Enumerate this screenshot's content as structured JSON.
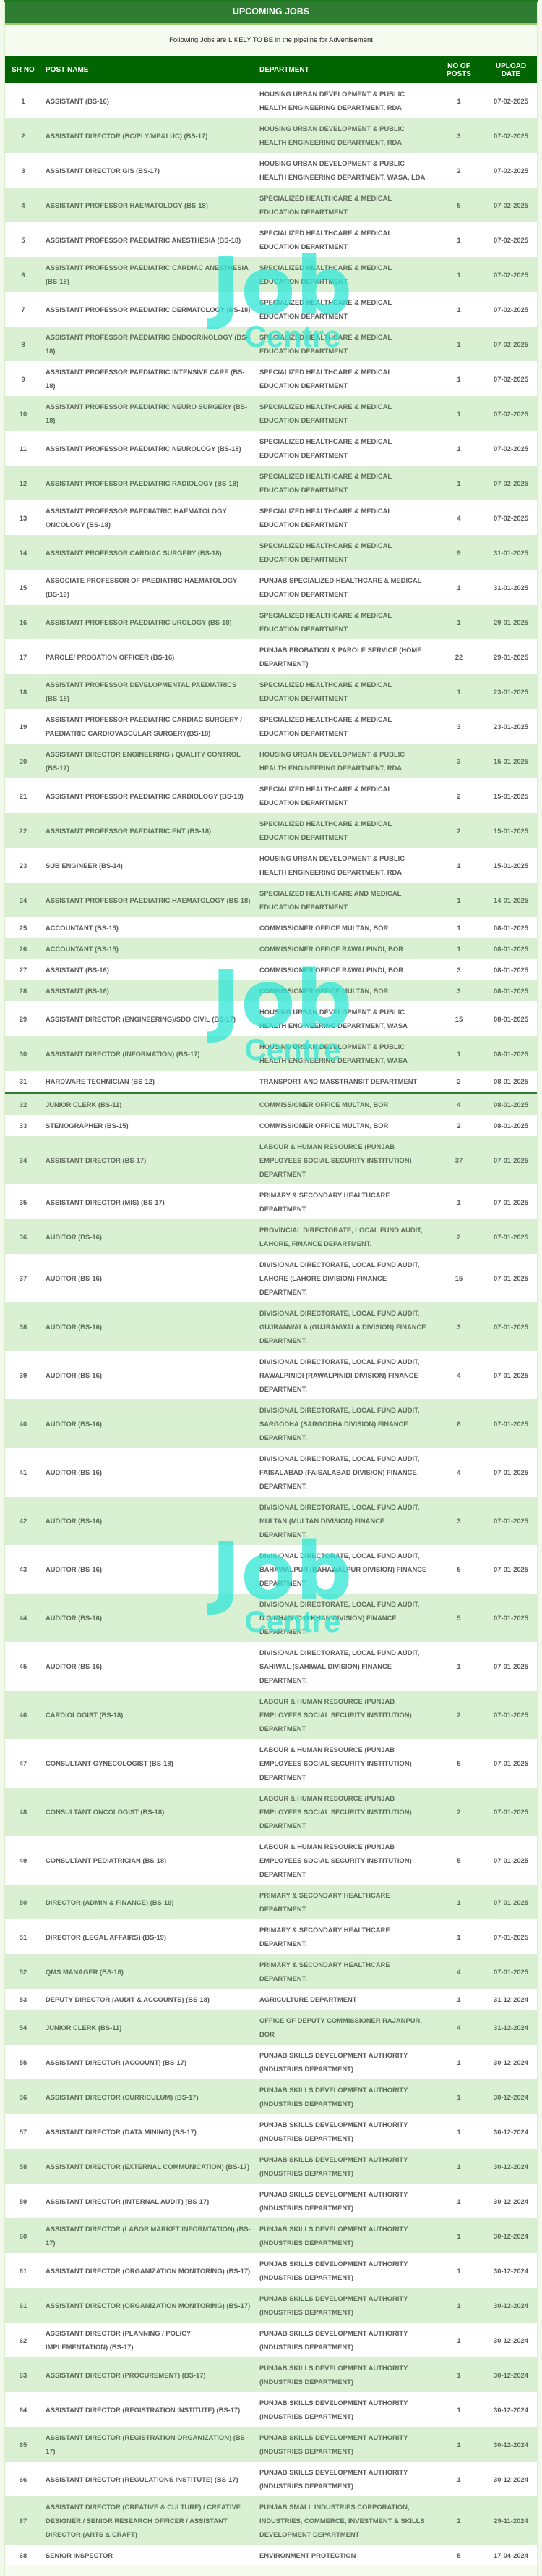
{
  "title": "UPCOMING JOBS",
  "subtitle": {
    "before": "Following Jobs are ",
    "emphasis": "LIKELY TO BE",
    "after": " in the pipeline for Advertisement"
  },
  "columns": [
    "SR NO",
    "POST NAME",
    "DEPARTMENT",
    "NO OF POSTS",
    "UPLOAD DATE"
  ],
  "watermark": {
    "logo": "Job",
    "sub": "Centre"
  },
  "colors": {
    "header_green": "#006400",
    "title_green": "#2e7d32",
    "row_alt": "#d9f0d3",
    "watermark": "#2ee6d6"
  },
  "rows": [
    [
      "1",
      "ASSISTANT (BS-16)",
      "HOUSING URBAN DEVELOPMENT & PUBLIC HEALTH ENGINEERING DEPARTMENT, RDA",
      "1",
      "07-02-2025"
    ],
    [
      "2",
      "ASSISTANT DIRECTOR (BC/PLY/MP&LUC) (BS-17)",
      "HOUSING URBAN DEVELOPMENT & PUBLIC HEALTH ENGINEERING DEPARTMENT, RDA",
      "3",
      "07-02-2025"
    ],
    [
      "3",
      "ASSISTANT DIRECTOR GIS (BS-17)",
      "HOUSING URBAN DEVELOPMENT & PUBLIC HEALTH ENGINEERING DEPARTMENT, WASA, LDA",
      "2",
      "07-02-2025"
    ],
    [
      "4",
      "ASSISTANT PROFESSOR HAEMATOLOGY (BS-18)",
      "SPECIALIZED HEALTHCARE & MEDICAL EDUCATION DEPARTMENT",
      "5",
      "07-02-2025"
    ],
    [
      "5",
      "ASSISTANT PROFESSOR PAEDIATRIC ANESTHESIA (BS-18)",
      "SPECIALIZED HEALTHCARE & MEDICAL EDUCATION DEPARTMENT",
      "1",
      "07-02-2025"
    ],
    [
      "6",
      "ASSISTANT PROFESSOR PAEDIATRIC CARDIAC ANESTHESIA (BS-18)",
      "SPECIALIZED HEALTHCARE & MEDICAL EDUCATION DEPARTMENT",
      "1",
      "07-02-2025"
    ],
    [
      "7",
      "ASSISTANT PROFESSOR PAEDIATRIC DERMATOLOGY (BS-18)",
      "SPECIALIZED HEALTHCARE & MEDICAL EDUCATION DEPARTMENT",
      "1",
      "07-02-2025"
    ],
    [
      "8",
      "ASSISTANT PROFESSOR PAEDIATRIC ENDOCRINOLOGY (BS-18)",
      "SPECIALIZED HEALTHCARE & MEDICAL EDUCATION DEPARTMENT",
      "1",
      "07-02-2025"
    ],
    [
      "9",
      "ASSISTANT PROFESSOR PAEDIATRIC INTENSIVE CARE (BS-18)",
      "SPECIALIZED HEALTHCARE & MEDICAL EDUCATION DEPARTMENT",
      "1",
      "07-02-2025"
    ],
    [
      "10",
      "ASSISTANT PROFESSOR PAEDIATRIC NEURO SURGERY (BS-18)",
      "SPECIALIZED HEALTHCARE & MEDICAL EDUCATION DEPARTMENT",
      "1",
      "07-02-2025"
    ],
    [
      "11",
      "ASSISTANT PROFESSOR PAEDIATRIC NEUROLOGY (BS-18)",
      "SPECIALIZED HEALTHCARE & MEDICAL EDUCATION DEPARTMENT",
      "1",
      "07-02-2025"
    ],
    [
      "12",
      "ASSISTANT PROFESSOR PAEDIATRIC RADIOLOGY (BS-18)",
      "SPECIALIZED HEALTHCARE & MEDICAL EDUCATION DEPARTMENT",
      "1",
      "07-02-2025"
    ],
    [
      "13",
      "ASSISTANT PROFESSOR PAEDIIATRIC HAEMATOLOGY ONCOLOGY (BS-18)",
      "SPECIALIZED HEALTHCARE & MEDICAL EDUCATION DEPARTMENT",
      "4",
      "07-02-2025"
    ],
    [
      "14",
      "ASSISTANT PROFESSOR CARDIAC SURGERY (BS-18)",
      "SPECIALIZED HEALTHCARE & MEDICAL EDUCATION DEPARTMENT",
      "9",
      "31-01-2025"
    ],
    [
      "15",
      "ASSOCIATE PROFESSOR OF PAEDIATRIC HAEMATOLOGY (BS-19)",
      "PUNJAB SPECIALIZED HEALTHCARE & MEDICAL EDUCATION DEPARTMENT",
      "1",
      "31-01-2025"
    ],
    [
      "16",
      "ASSISTANT PROFESSOR PAEDIATRIC UROLOGY (BS-18)",
      "SPECIALIZED HEALTHCARE & MEDICAL EDUCATION DEPARTMENT",
      "1",
      "29-01-2025"
    ],
    [
      "17",
      "PAROLE/ PROBATION OFFICER (BS-16)",
      "PUNJAB PROBATION & PAROLE SERVICE (HOME DEPARTMENT)",
      "22",
      "29-01-2025"
    ],
    [
      "18",
      "ASSISTANT PROFESSOR DEVELOPMENTAL PAEDIATRICS (BS-18)",
      "SPECIALIZED HEALTHCARE & MEDICAL EDUCATION DEPARTMENT",
      "1",
      "23-01-2025"
    ],
    [
      "19",
      "ASSISTANT PROFESSOR PAEDIATRIC CARDIAC SURGERY / PAEDIATRIC CARDIOVASCULAR SURGERY(BS-18)",
      "SPECIALIZED HEALTHCARE & MEDICAL EDUCATION DEPARTMENT",
      "3",
      "23-01-2025"
    ],
    [
      "20",
      "ASSISTANT DIRECTOR ENGINEERING / QUALITY CONTROL (BS-17)",
      "HOUSING URBAN DEVELOPMENT & PUBLIC HEALTH ENGINEERING DEPARTMENT, RDA",
      "3",
      "15-01-2025"
    ],
    [
      "21",
      "ASSISTANT PROFESSOR PAEDIATRIC CARDIOLOGY (BS-18)",
      "SPECIALIZED HEALTHCARE & MEDICAL EDUCATION DEPARTMENT",
      "2",
      "15-01-2025"
    ],
    [
      "22",
      "ASSISTANT PROFESSOR PAEDIATRIC ENT (BS-18)",
      "SPECIALIZED HEALTHCARE & MEDICAL EDUCATION DEPARTMENT",
      "2",
      "15-01-2025"
    ],
    [
      "23",
      "SUB ENGINEER (BS-14)",
      "HOUSING URBAN DEVELOPMENT & PUBLIC HEALTH ENGINEERING DEPARTMENT, RDA",
      "1",
      "15-01-2025"
    ],
    [
      "24",
      "ASSISTANT PROFESSOR PAEDIATRIC HAEMATOLOGY (BS-18)",
      "SPECIALIZED HEALTHCARE AND MEDICAL EDUCATION DEPARTMENT",
      "1",
      "14-01-2025"
    ],
    [
      "25",
      "ACCOUNTANT (BS-15)",
      "COMMISSIONER OFFICE MULTAN, BOR",
      "1",
      "08-01-2025"
    ],
    [
      "26",
      "ACCOUNTANT (BS-15)",
      "COMMISSIONER OFFICE RAWALPINDI, BOR",
      "1",
      "08-01-2025"
    ],
    [
      "27",
      "ASSISTANT (BS-16)",
      "COMMISSIONER OFFICE RAWALPINDI, BOR",
      "3",
      "08-01-2025"
    ],
    [
      "28",
      "ASSISTANT (BS-16)",
      "COMMISSIONER OFFICE MULTAN, BOR",
      "3",
      "08-01-2025"
    ],
    [
      "29",
      "ASSISTANT DIRECTOR (ENGINEERING)/SDO CIVIL (BS-17)",
      "HOUSING URBAN DEVELOPMENT & PUBLIC HEALTH ENGINEERING DEPARTMENT, WASA",
      "15",
      "08-01-2025"
    ],
    [
      "30",
      "ASSISTANT DIRECTOR (INFORMATION) (BS-17)",
      "HOUSING URBAN DEVELOPMENT & PUBLIC HEALTH ENGINEERING DEPARTMENT, WASA",
      "1",
      "08-01-2025"
    ],
    [
      "31",
      "HARDWARE TECHNICIAN (BS-12)",
      "TRANSPORT AND MASSTRANSIT DEPARTMENT",
      "2",
      "08-01-2025"
    ],
    [
      "32",
      "JUNIOR CLERK (BS-11)",
      "COMMISSIONER OFFICE MULTAN, BOR",
      "4",
      "08-01-2025"
    ],
    [
      "33",
      "STENOGRAPHER (BS-15)",
      "COMMISSIONER OFFICE MULTAN, BOR",
      "2",
      "08-01-2025"
    ],
    [
      "34",
      "ASSISTANT DIRECTOR (BS-17)",
      "LABOUR & HUMAN RESOURCE (PUNJAB EMPLOYEES SOCIAL SECURITY INSTITUTION) DEPARTMENT",
      "37",
      "07-01-2025"
    ],
    [
      "35",
      "ASSISTANT DIRECTOR (MIS) (BS-17)",
      "PRIMARY & SECONDARY HEALTHCARE DEPARTMENT.",
      "1",
      "07-01-2025"
    ],
    [
      "36",
      "AUDITOR (BS-16)",
      "PROVINCIAL DIRECTORATE, LOCAL FUND AUDIT, LAHORE, FINANCE DEPARTMENT.",
      "2",
      "07-01-2025"
    ],
    [
      "37",
      "AUDITOR (BS-16)",
      "DIVISIONAL DIRECTORATE, LOCAL FUND AUDIT, LAHORE (LAHORE DIVISION) FINANCE DEPARTMENT.",
      "15",
      "07-01-2025"
    ],
    [
      "38",
      "AUDITOR (BS-16)",
      "DIVISIONAL DIRECTORATE, LOCAL FUND AUDIT, GUJRANWALA (GUJRANWALA DIVISION) FINANCE DEPARTMENT.",
      "3",
      "07-01-2025"
    ],
    [
      "39",
      "AUDITOR (BS-16)",
      "DIVISIONAL DIRECTORATE, LOCAL FUND AUDIT, RAWALPINIDI (RAWALPINIDI DIVISION) FINANCE DEPARTMENT.",
      "4",
      "07-01-2025"
    ],
    [
      "40",
      "AUDITOR (BS-16)",
      "DIVISIONAL DIRECTORATE, LOCAL FUND AUDIT, SARGODHA (SARGODHA DIVISION) FINANCE DEPARTMENT.",
      "8",
      "07-01-2025"
    ],
    [
      "41",
      "AUDITOR (BS-16)",
      "DIVISIONAL DIRECTORATE, LOCAL FUND AUDIT, FAISALABAD (FAISALABAD DIVISION) FINANCE DEPARTMENT.",
      "4",
      "07-01-2025"
    ],
    [
      "42",
      "AUDITOR (BS-16)",
      "DIVISIONAL DIRECTORATE, LOCAL FUND AUDIT, MULTAN (MULTAN DIVISION) FINANCE DEPARTMENT.",
      "3",
      "07-01-2025"
    ],
    [
      "43",
      "AUDITOR (BS-16)",
      "DIVISIONAL DIRECTORATE, LOCAL FUND AUDIT, BAHAWALPUR (BAHAWALPUR DIVISION) FINANCE DEPARTMENT.",
      "5",
      "07-01-2025"
    ],
    [
      "44",
      "AUDITOR (BS-16)",
      "DIVISIONAL DIRECTORATE, LOCAL FUND AUDIT, D.G KHAN (D.G KHAN DIVISION) FINANCE DEPARTMENT.",
      "5",
      "07-01-2025"
    ],
    [
      "45",
      "AUDITOR (BS-16)",
      "DIVISIONAL DIRECTORATE, LOCAL FUND AUDIT, SAHIWAL (SAHIWAL DIVISION) FINANCE DEPARTMENT.",
      "1",
      "07-01-2025"
    ],
    [
      "46",
      "CARDIOLOGIST (BS-18)",
      "LABOUR & HUMAN RESOURCE (PUNJAB EMPLOYEES SOCIAL SECURITY INSTITUTION) DEPARTMENT",
      "2",
      "07-01-2025"
    ],
    [
      "47",
      "CONSULTANT GYNECOLOGIST (BS-18)",
      "LABOUR & HUMAN RESOURCE (PUNJAB EMPLOYEES SOCIAL SECURITY INSTITUTION) DEPARTMENT",
      "5",
      "07-01-2025"
    ],
    [
      "48",
      "CONSULTANT ONCOLOGIST (BS-18)",
      "LABOUR & HUMAN RESOURCE (PUNJAB EMPLOYEES SOCIAL SECURITY INSTITUTION) DEPARTMENT",
      "2",
      "07-01-2025"
    ],
    [
      "49",
      "CONSULTANT PEDIATRICIAN (BS-18)",
      "LABOUR & HUMAN RESOURCE (PUNJAB EMPLOYEES SOCIAL SECURITY INSTITUTION) DEPARTMENT",
      "5",
      "07-01-2025"
    ],
    [
      "50",
      "DIRECTOR (ADMIN & FINANCE) (BS-19)",
      "PRIMARY & SECONDARY HEALTHCARE DEPARTMENT.",
      "1",
      "07-01-2025"
    ],
    [
      "51",
      "DIRECTOR (LEGAL AFFAIRS) (BS-19)",
      "PRIMARY & SECONDARY HEALTHCARE DEPARTMENT.",
      "1",
      "07-01-2025"
    ],
    [
      "52",
      "QMS MANAGER (BS-18)",
      "PRIMARY & SECONDARY HEALTHCARE DEPARTMENT.",
      "4",
      "07-01-2025"
    ],
    [
      "53",
      "DEPUTY DIRECTOR (AUDIT & ACCOUNTS) (BS-18)",
      "AGRICULTURE DEPARTMENT",
      "1",
      "31-12-2024"
    ],
    [
      "54",
      "JUNIOR CLERK (BS-11)",
      "OFFICE OF DEPUTY COMMISSIONER RAJANPUR, BOR",
      "4",
      "31-12-2024"
    ],
    [
      "55",
      "ASSISTANT DIRECTOR (ACCOUNT) (BS-17)",
      "PUNJAB SKILLS DEVELOPMENT AUTHORITY (INDUSTRIES DEPARTMENT)",
      "1",
      "30-12-2024"
    ],
    [
      "56",
      "ASSISTANT DIRECTOR (CURRICULUM) (BS-17)",
      "PUNJAB SKILLS DEVELOPMENT AUTHORITY (INDUSTRIES DEPARTMENT)",
      "1",
      "30-12-2024"
    ],
    [
      "57",
      "ASSISTANT DIRECTOR (DATA MINING) (BS-17)",
      "PUNJAB SKILLS DEVELOPMENT AUTHORITY (INDUSTRIES DEPARTMENT)",
      "1",
      "30-12-2024"
    ],
    [
      "58",
      "ASSISTANT DIRECTOR (EXTERNAL COMMUNICATION) (BS-17)",
      "PUNJAB SKILLS DEVELOPMENT AUTHORITY (INDUSTRIES DEPARTMENT)",
      "1",
      "30-12-2024"
    ],
    [
      "59",
      "ASSISTANT DIRECTOR (INTERNAL AUDIT) (BS-17)",
      "PUNJAB SKILLS DEVELOPMENT AUTHORITY (INDUSTRIES DEPARTMENT)",
      "1",
      "30-12-2024"
    ],
    [
      "60",
      "ASSISTANT DIRECTOR (LABOR MARKET INFORMTATION) (BS-17)",
      "PUNJAB SKILLS DEVELOPMENT AUTHORITY (INDUSTRIES DEPARTMENT)",
      "1",
      "30-12-2024"
    ],
    [
      "61",
      "ASSISTANT DIRECTOR (ORGANIZATION MONITORING) (BS-17)",
      "PUNJAB SKILLS DEVELOPMENT AUTHORITY (INDUSTRIES DEPARTMENT)",
      "1",
      "30-12-2024"
    ],
    [
      "61",
      "ASSISTANT DIRECTOR (ORGANIZATION MONITORING) (BS-17)",
      "PUNJAB SKILLS DEVELOPMENT AUTHORITY (INDUSTRIES DEPARTMENT)",
      "1",
      "30-12-2024"
    ],
    [
      "62",
      "ASSISTANT DIRECTOR (PLANNING / POLICY IMPLEMENTATION) (BS-17)",
      "PUNJAB SKILLS DEVELOPMENT AUTHORITY (INDUSTRIES DEPARTMENT)",
      "1",
      "30-12-2024"
    ],
    [
      "63",
      "ASSISTANT DIRECTOR (PROCUREMENT) (BS-17)",
      "PUNJAB SKILLS DEVELOPMENT AUTHORITY (INDUSTRIES DEPARTMENT)",
      "1",
      "30-12-2024"
    ],
    [
      "64",
      "ASSISTANT DIRECTOR (REGISTRATION INSTITUTE) (BS-17)",
      "PUNJAB SKILLS DEVELOPMENT AUTHORITY (INDUSTRIES DEPARTMENT)",
      "1",
      "30-12-2024"
    ],
    [
      "65",
      "ASSISTANT DIRECTOR (REGISTRATION ORGANIZATION) (BS-17)",
      "PUNJAB SKILLS DEVELOPMENT AUTHORITY (INDUSTRIES DEPARTMENT)",
      "1",
      "30-12-2024"
    ],
    [
      "66",
      "ASSISTANT DIRECTOR (REGULATIONS INSTITUTE) (BS-17)",
      "PUNJAB SKILLS DEVELOPMENT AUTHORITY (INDUSTRIES DEPARTMENT)",
      "1",
      "30-12-2024"
    ],
    [
      "67",
      "ASSISTANT DIRECTOR (CREATIVE & CULTURE) / CREATIVE DESIGNER / SENIOR RESEARCH OFFICER / ASSISTANT DIRECTOR (ARTS & CRAFT)",
      "PUNJAB SMALL INDUSTRIES CORPORATION, INDUSTRIES, COMMERCE, INVESTMENT & SKILLS DEVELOPMENT DEPARTMENT",
      "2",
      "29-11-2024"
    ],
    [
      "68",
      "SENIOR INSPECTOR",
      "ENVIRONMENT PROTECTION",
      "5",
      "17-04-2024"
    ]
  ]
}
